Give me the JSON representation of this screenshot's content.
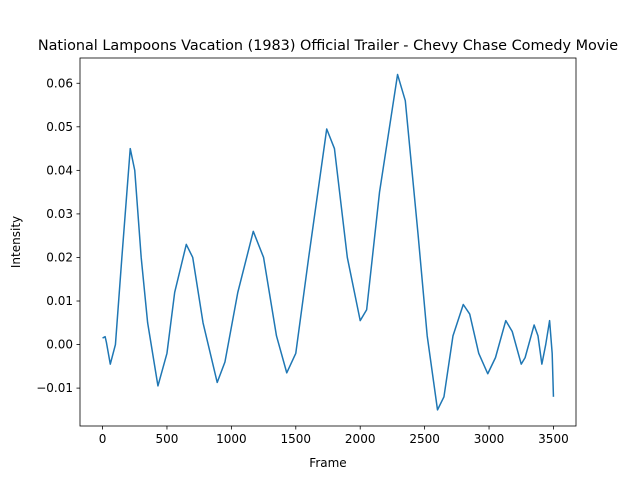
{
  "chart_data": {
    "type": "line",
    "title": "National Lampoons Vacation (1983) Official Trailer - Chevy Chase Comedy Movie",
    "x_label": "Frame",
    "y_label": "Intensity",
    "x": [
      0,
      20,
      30,
      60,
      100,
      150,
      215,
      250,
      300,
      350,
      430,
      500,
      560,
      650,
      700,
      780,
      890,
      950,
      1050,
      1170,
      1250,
      1350,
      1430,
      1500,
      1600,
      1740,
      1800,
      1900,
      2000,
      2050,
      2150,
      2290,
      2350,
      2450,
      2520,
      2600,
      2650,
      2720,
      2800,
      2850,
      2920,
      2990,
      3050,
      3130,
      3180,
      3250,
      3280,
      3350,
      3380,
      3410,
      3440,
      3470,
      3490,
      3500
    ],
    "series": [
      {
        "color": "#1f77b4",
        "values": [
          0.0015,
          0.0018,
          0.0005,
          -0.0045,
          0.0,
          0.02,
          0.045,
          0.04,
          0.02,
          0.005,
          -0.0095,
          -0.002,
          0.012,
          0.023,
          0.02,
          0.005,
          -0.0087,
          -0.004,
          0.012,
          0.026,
          0.02,
          0.002,
          -0.0065,
          -0.002,
          0.02,
          0.0495,
          0.045,
          0.02,
          0.0055,
          0.008,
          0.035,
          0.062,
          0.056,
          0.025,
          0.002,
          -0.015,
          -0.012,
          0.002,
          0.0092,
          0.007,
          -0.002,
          -0.0067,
          -0.003,
          0.0055,
          0.003,
          -0.0045,
          -0.003,
          0.0045,
          0.002,
          -0.0045,
          0.0,
          0.0055,
          -0.002,
          -0.012
        ]
      }
    ],
    "xlim": [
      -175,
      3675
    ],
    "ylim": [
      -0.0187,
      0.0658
    ],
    "xticks": [
      0,
      500,
      1000,
      1500,
      2000,
      2500,
      3000,
      3500
    ],
    "yticks": [
      {
        "value": -0.01,
        "label": "−0.01"
      },
      {
        "value": 0,
        "label": "0.00"
      },
      {
        "value": 0.01,
        "label": "0.01"
      },
      {
        "value": 0.02,
        "label": "0.02"
      },
      {
        "value": 0.03,
        "label": "0.03"
      },
      {
        "value": 0.04,
        "label": "0.04"
      },
      {
        "value": 0.05,
        "label": "0.05"
      },
      {
        "value": 0.06,
        "label": "0.06"
      }
    ],
    "grid": false
  }
}
